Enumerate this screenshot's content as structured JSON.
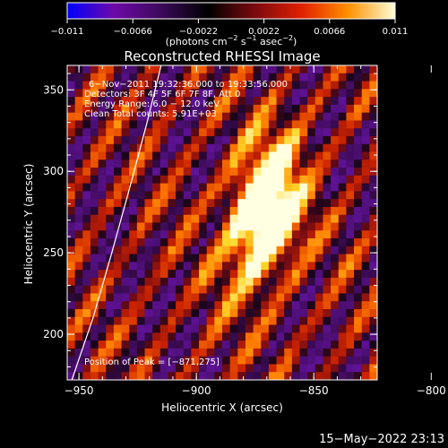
{
  "chart_data": {
    "type": "heatmap",
    "title": "Reconstructed RHESSI Image",
    "xlabel": "Heliocentric X (arcsec)",
    "ylabel": "Heliocentric Y (arcsec)",
    "xlim": [
      -955,
      -823
    ],
    "ylim": [
      172,
      365
    ],
    "x_ticks": [
      -950,
      -900,
      -850,
      -800
    ],
    "x_tick_labels": [
      "−950",
      "−900",
      "−850",
      "−800"
    ],
    "y_ticks": [
      200,
      250,
      300,
      350
    ],
    "y_tick_labels": [
      "200",
      "250",
      "300",
      "350"
    ],
    "colorbar": {
      "range": [
        -0.011,
        0.011
      ],
      "ticks": [
        -0.011,
        -0.0066,
        -0.0022,
        0.0022,
        0.0066,
        0.011
      ],
      "tick_labels": [
        "−0.011",
        "−0.0066",
        "−0.0022",
        "0.0022",
        "0.0066",
        "0.011"
      ],
      "units_prefix": "(photons cm",
      "units_exp1": "−2",
      "units_mid": " s",
      "units_exp2": "−1",
      "units_mid2": " asec",
      "units_exp3": "−2",
      "units_suffix": ")",
      "colors": [
        "#0000ff",
        "#6d0aa8",
        "#3c0a5a",
        "#000000",
        "#7a0a10",
        "#e02000",
        "#ff9000",
        "#ffffd8"
      ]
    },
    "info_lines": [
      "6−Nov−2011 19:32:36.000 to 19:33:56.000",
      "Detectors: 3F 4F 5F 6F 7F 8F, Att 0",
      "Energy Range: 6.0 − 12.0 keV",
      "Clean     Total counts: 5.91E+03"
    ],
    "peak_label": "Position of Peak = [−871,275]",
    "peak": {
      "x": -871,
      "y": 275
    },
    "limb_points": [
      [
        -953,
        172
      ],
      [
        -944,
        210
      ],
      [
        -936,
        250
      ],
      [
        -928,
        292
      ],
      [
        -921,
        330
      ],
      [
        -915,
        365
      ]
    ],
    "grid": false
  },
  "footer": {
    "timestamp": "15−May−2022 23:13"
  }
}
